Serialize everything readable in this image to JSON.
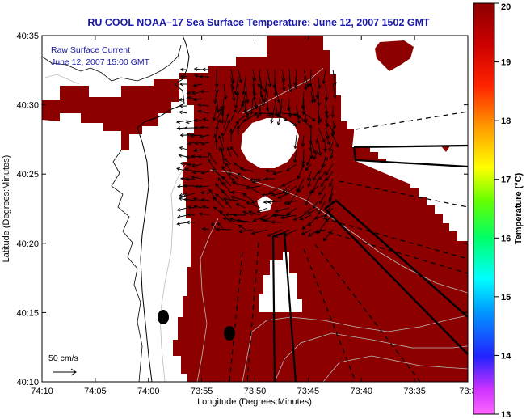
{
  "map": {
    "title": "RU COOL   NOAA–17  Sea Surface Temperature:  June 12, 2007 1502 GMT",
    "legend": {
      "line1": "Raw Surface Current",
      "line2": "June 12, 2007 15:00 GMT"
    },
    "scale_label": "50 cm/s",
    "x_axis": {
      "label": "Longitude (Degrees:Minutes)",
      "ticks": [
        "74:10",
        "74:05",
        "74:00",
        "73:55",
        "73:50",
        "73:45",
        "73:40",
        "73:35",
        "73:3"
      ]
    },
    "y_axis": {
      "label": "Latitude (Degrees:Minutes)",
      "ticks": [
        "40:35",
        "40:30",
        "40:25",
        "40:20",
        "40:15",
        "40:10"
      ]
    },
    "colorbar": {
      "label": "Temperature (°C)",
      "ticks": [
        "20",
        "19",
        "18",
        "17",
        "16",
        "15",
        "14",
        "13"
      ],
      "min": 13,
      "max": 20
    },
    "colors": {
      "sst_fill": "#8c0000",
      "land": "#ffffff",
      "title": "#1a1aa6",
      "vectors": "#000000"
    }
  }
}
